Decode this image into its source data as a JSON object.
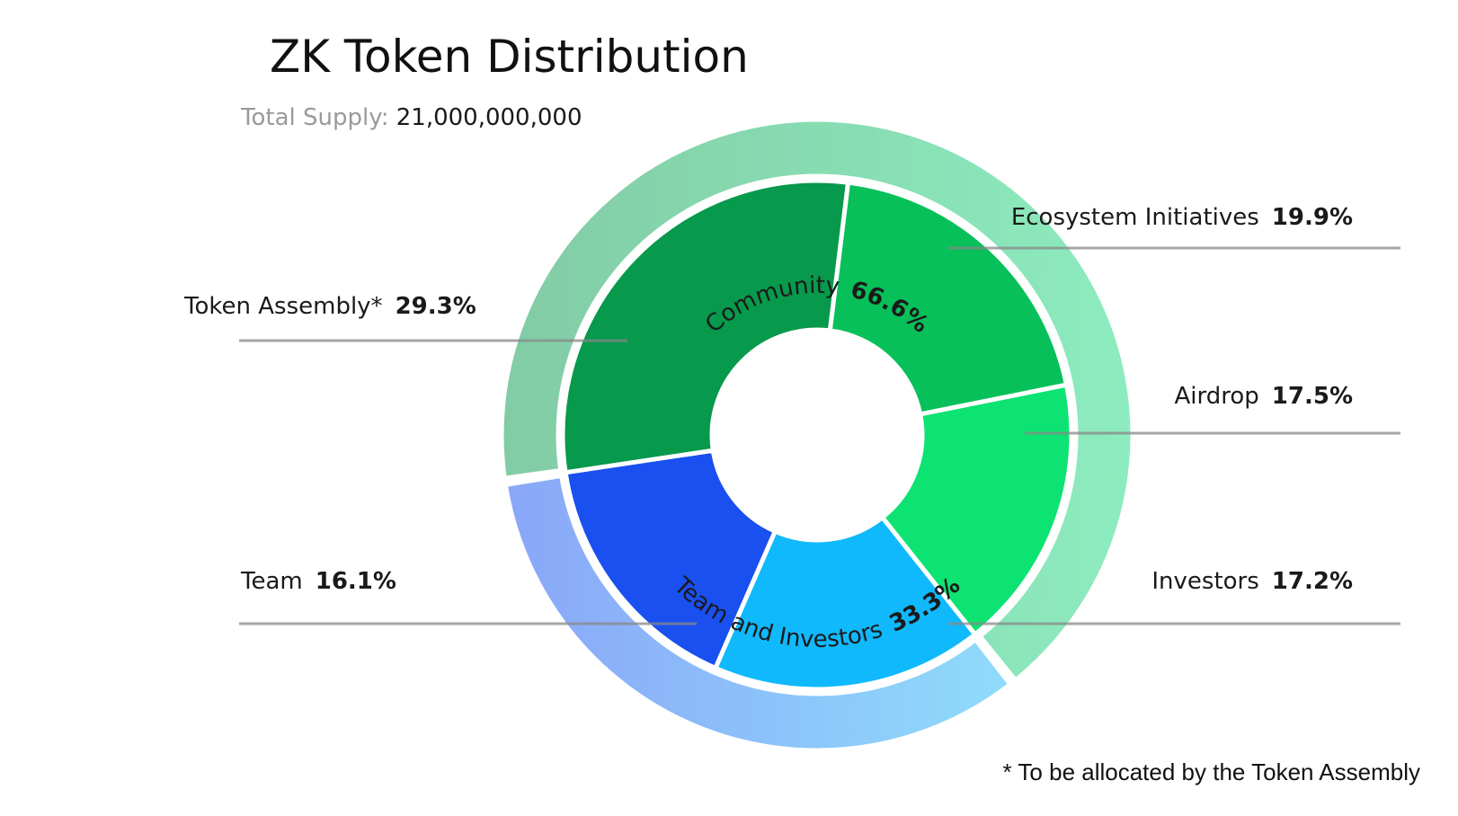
{
  "title": "ZK Token Distribution",
  "total_supply": {
    "label": "Total Supply:",
    "value": "21,000,000,000"
  },
  "footnote": "* To be allocated by the Token Assembly",
  "colors": {
    "community_group": "#86e4b3",
    "team_investors_group": "#8fc8fb",
    "token_assembly": "#07994c",
    "ecosystem_initiatives": "#07c05a",
    "airdrop": "#0de372",
    "investors": "#10b9fb",
    "team": "#1a4ff0"
  },
  "chart_data": {
    "type": "pie",
    "title": "ZK Token Distribution",
    "subtitle": "Total Supply: 21,000,000,000",
    "outer_ring": [
      {
        "label": "Community",
        "value": 66.6,
        "display": "66.6%"
      },
      {
        "label": "Team and Investors",
        "value": 33.3,
        "display": "33.3%"
      }
    ],
    "slices": [
      {
        "label": "Ecosystem Initiatives",
        "value": 19.9,
        "display": "19.9%",
        "group": "Community"
      },
      {
        "label": "Airdrop",
        "value": 17.5,
        "display": "17.5%",
        "group": "Community"
      },
      {
        "label": "Investors",
        "value": 17.2,
        "display": "17.2%",
        "group": "Team and Investors"
      },
      {
        "label": "Team",
        "value": 16.1,
        "display": "16.1%",
        "group": "Team and Investors"
      },
      {
        "label": "Token Assembly*",
        "value": 29.3,
        "display": "29.3%",
        "group": "Community"
      }
    ],
    "unit": "%",
    "legend": "none"
  }
}
